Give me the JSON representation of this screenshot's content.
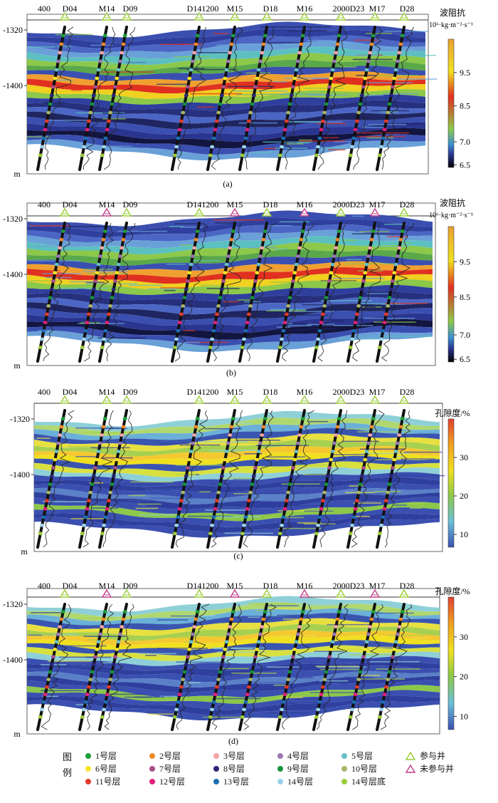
{
  "figure": {
    "panels": [
      {
        "id": "a",
        "caption": "(a)",
        "colorbar_title": "波阻抗",
        "colorbar_unit": "10⁶·kg·m⁻²·s⁻¹",
        "colorbar_ticks": [
          "9.5",
          "8.5",
          "7.0",
          "6.5"
        ],
        "colorbar_type": "impedance",
        "wells_participating": [
          true,
          true,
          true,
          true,
          true,
          true,
          true,
          true,
          true,
          true
        ]
      },
      {
        "id": "b",
        "caption": "(b)",
        "colorbar_title": "波阻抗",
        "colorbar_unit": "10⁶·kg·m⁻²·s⁻¹",
        "colorbar_ticks": [
          "9.5",
          "8.5",
          "7.0",
          "6.5"
        ],
        "colorbar_type": "impedance",
        "wells_participating": [
          true,
          false,
          true,
          true,
          false,
          true,
          false,
          true,
          false,
          true
        ]
      },
      {
        "id": "c",
        "caption": "(c)",
        "colorbar_title": "孔隙度/%",
        "colorbar_unit": "",
        "colorbar_ticks": [
          "30",
          "20",
          "10"
        ],
        "colorbar_type": "porosity",
        "wells_participating": [
          true,
          true,
          true,
          true,
          true,
          true,
          true,
          true,
          true,
          true
        ]
      },
      {
        "id": "d",
        "caption": "(d)",
        "colorbar_title": "孔隙度/%",
        "colorbar_unit": "",
        "colorbar_ticks": [
          "30",
          "20",
          "10"
        ],
        "colorbar_type": "porosity",
        "wells_participating": [
          true,
          false,
          true,
          true,
          false,
          true,
          false,
          true,
          false,
          true
        ]
      }
    ],
    "well_labels": [
      "400",
      "D04",
      "M14",
      "D09",
      "D141200",
      "M15",
      "D18",
      "M16",
      "2000D23",
      "M17",
      "D28"
    ],
    "depth_ticks": [
      "-1320",
      "-1400"
    ],
    "depth_unit": "m"
  },
  "legend": {
    "title_chars": [
      "图",
      "例"
    ],
    "items": [
      {
        "label": "1号层",
        "color": "#1f9e3a"
      },
      {
        "label": "2号层",
        "color": "#f08a2a"
      },
      {
        "label": "3号层",
        "color": "#f3a3a8"
      },
      {
        "label": "4号层",
        "color": "#9a77b4"
      },
      {
        "label": "5号层",
        "color": "#68c0c8"
      },
      {
        "label": "6号层",
        "color": "#f5e52a"
      },
      {
        "label": "7号层",
        "color": "#a8508a"
      },
      {
        "label": "8号层",
        "color": "#2b2678"
      },
      {
        "label": "9号层",
        "color": "#16913c"
      },
      {
        "label": "10号层",
        "color": "#a9b56a"
      },
      {
        "label": "11号层",
        "color": "#e23a2a"
      },
      {
        "label": "12号层",
        "color": "#e0207a"
      },
      {
        "label": "13号层",
        "color": "#1c6fb3"
      },
      {
        "label": "14号层",
        "color": "#9bd3ec"
      },
      {
        "label": "14号层底",
        "color": "#9ccc3a"
      }
    ],
    "well_symbols": [
      {
        "label": "参与井",
        "color": "#9ccc3a"
      },
      {
        "label": "未参与井",
        "color": "#c0408a"
      }
    ]
  }
}
